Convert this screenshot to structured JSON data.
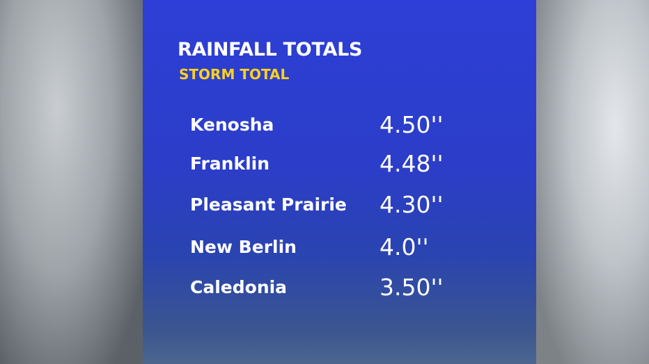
{
  "header": {
    "title": "RAINFALL TOTALS",
    "subtitle": "STORM TOTAL"
  },
  "table": {
    "rows": [
      [
        "Kenosha",
        "4.50''"
      ],
      [
        "Franklin",
        "4.48''"
      ],
      [
        "Pleasant Prairie",
        "4.30''"
      ],
      [
        "New Berlin",
        "4.0''"
      ],
      [
        "Caledonia",
        "3.50''"
      ]
    ]
  }
}
